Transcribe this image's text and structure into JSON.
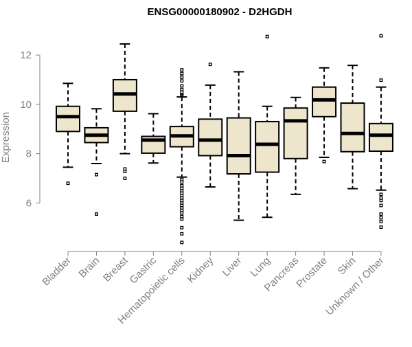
{
  "chart_data": {
    "type": "boxplot",
    "title": "ENSG00000180902 - D2HGDH",
    "xlabel": "",
    "ylabel": "Expression",
    "ylim": [
      4.2,
      13.2
    ],
    "yticks": [
      6,
      8,
      10,
      12
    ],
    "colors": {
      "box_fill": "#ede6cc",
      "stroke": "#000000",
      "axis": "#808080",
      "title": "#000000"
    },
    "categories": [
      "Bladder",
      "Brain",
      "Breast",
      "Gastric",
      "Hematopoietic cells",
      "Kidney",
      "Liver",
      "Lung",
      "Pancreas",
      "Prostate",
      "Skin",
      "Unknown / Other"
    ],
    "boxes": [
      {
        "name": "Bladder",
        "whisker_low": 7.45,
        "q1": 8.9,
        "median": 9.5,
        "q3": 9.92,
        "whisker_high": 10.85,
        "outliers": [
          6.8
        ]
      },
      {
        "name": "Brain",
        "whisker_low": 7.6,
        "q1": 8.45,
        "median": 8.75,
        "q3": 9.05,
        "whisker_high": 9.82,
        "outliers": [
          7.15,
          5.55
        ]
      },
      {
        "name": "Breast",
        "whisker_low": 8.0,
        "q1": 9.72,
        "median": 10.42,
        "q3": 11.0,
        "whisker_high": 12.45,
        "outliers": [
          7.38,
          7.28,
          7.0
        ]
      },
      {
        "name": "Gastric",
        "whisker_low": 7.62,
        "q1": 8.02,
        "median": 8.55,
        "q3": 8.7,
        "whisker_high": 9.62,
        "outliers": []
      },
      {
        "name": "Hematopoietic cells",
        "whisker_low": 7.05,
        "q1": 8.28,
        "median": 8.72,
        "q3": 9.1,
        "whisker_high": 10.3,
        "outliers": [
          11.4,
          11.25,
          11.1,
          10.95,
          10.75,
          10.6,
          10.5,
          10.4,
          10.35,
          6.95,
          6.85,
          6.7,
          6.6,
          6.5,
          6.4,
          6.3,
          6.2,
          6.1,
          6.0,
          5.9,
          5.8,
          5.7,
          5.6,
          5.45,
          5.35,
          5.0,
          4.75,
          4.4
        ]
      },
      {
        "name": "Kidney",
        "whisker_low": 6.65,
        "q1": 7.92,
        "median": 8.55,
        "q3": 9.4,
        "whisker_high": 10.78,
        "outliers": [
          11.62
        ]
      },
      {
        "name": "Liver",
        "whisker_low": 5.3,
        "q1": 7.18,
        "median": 7.92,
        "q3": 9.45,
        "whisker_high": 11.32,
        "outliers": []
      },
      {
        "name": "Lung",
        "whisker_low": 5.42,
        "q1": 7.25,
        "median": 8.38,
        "q3": 9.3,
        "whisker_high": 9.92,
        "outliers": [
          12.75
        ]
      },
      {
        "name": "Pancreas",
        "whisker_low": 6.35,
        "q1": 7.8,
        "median": 9.33,
        "q3": 9.85,
        "whisker_high": 10.28,
        "outliers": []
      },
      {
        "name": "Prostate",
        "whisker_low": 7.85,
        "q1": 9.5,
        "median": 10.18,
        "q3": 10.7,
        "whisker_high": 11.48,
        "outliers": [
          7.68
        ]
      },
      {
        "name": "Skin",
        "whisker_low": 6.58,
        "q1": 8.08,
        "median": 8.82,
        "q3": 10.05,
        "whisker_high": 11.58,
        "outliers": []
      },
      {
        "name": "Unknown / Other",
        "whisker_low": 6.52,
        "q1": 8.1,
        "median": 8.75,
        "q3": 9.22,
        "whisker_high": 10.7,
        "outliers": [
          12.78,
          10.98,
          6.35,
          6.2,
          6.1,
          5.9,
          5.55,
          5.4,
          5.25,
          5.02
        ]
      }
    ]
  }
}
